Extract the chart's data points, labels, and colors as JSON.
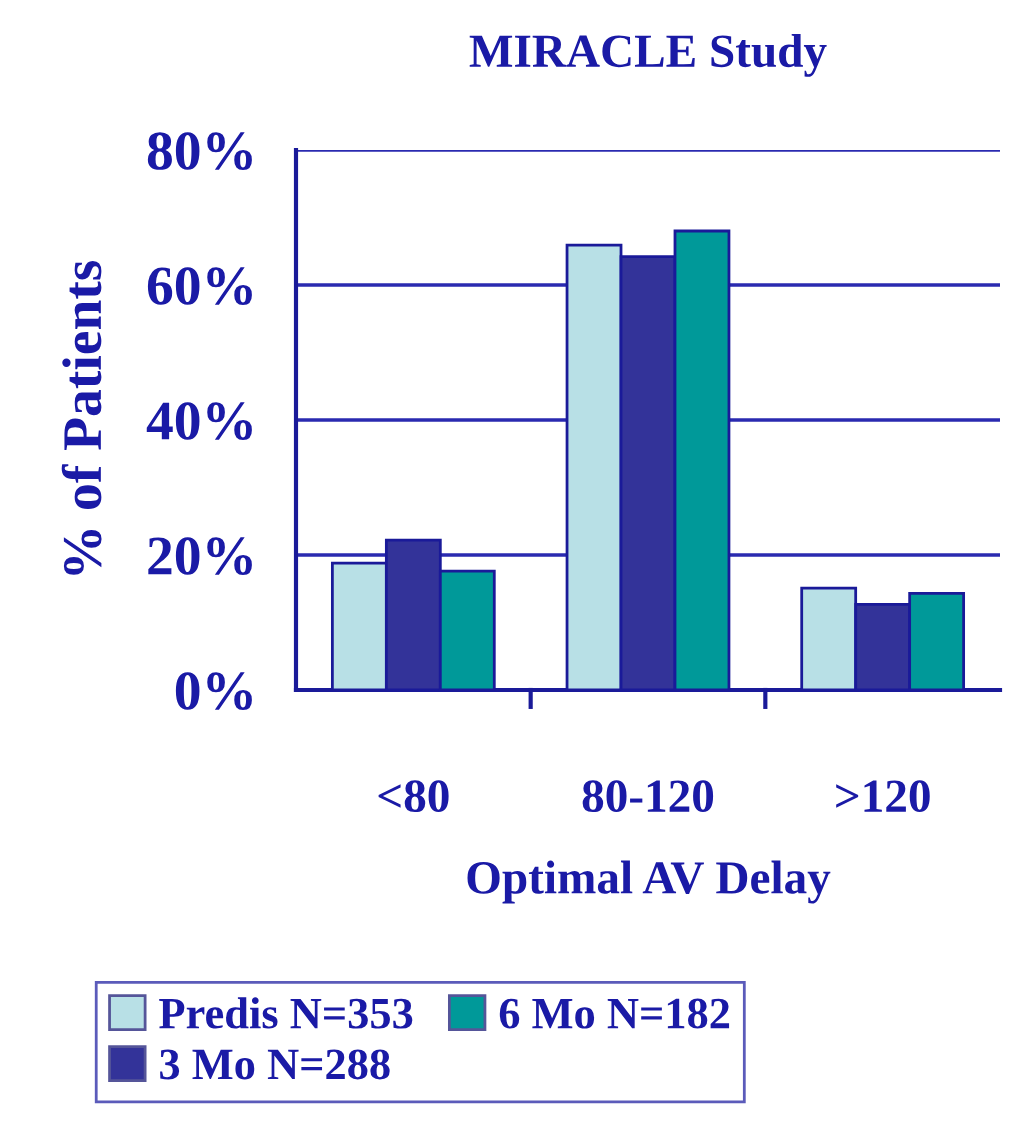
{
  "chart_data": {
    "type": "bar",
    "title": "MIRACLE Study",
    "xlabel": "Optimal AV Delay",
    "ylabel": "% of Patients",
    "categories": [
      "<80",
      "80-120",
      ">120"
    ],
    "series": [
      {
        "name": "Predis N=353",
        "color": "#b8e0e6",
        "values": [
          18.8,
          65.9,
          15.1
        ]
      },
      {
        "name": "3 Mo N=288",
        "color": "#333399",
        "values": [
          22.2,
          64.2,
          12.7
        ]
      },
      {
        "name": "6 Mo N=182",
        "color": "#009999",
        "values": [
          17.6,
          68.0,
          14.3
        ]
      }
    ],
    "ylim": [
      0,
      80
    ],
    "yticks": [
      {
        "value": 0,
        "label": "0%"
      },
      {
        "value": 20,
        "label": "20%"
      },
      {
        "value": 40,
        "label": "40%"
      },
      {
        "value": 60,
        "label": "60%"
      },
      {
        "value": 80,
        "label": "80%"
      }
    ],
    "grid": "y",
    "legend": "bottom"
  }
}
